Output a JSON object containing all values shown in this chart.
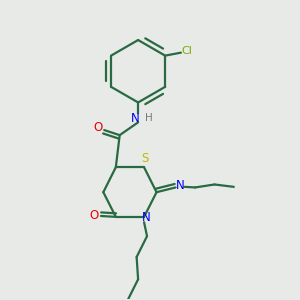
{
  "bg_color": "#e8eae8",
  "bond_color": "#2a6a42",
  "atom_colors": {
    "N": "#0000ee",
    "O": "#ee0000",
    "S": "#bbbb00",
    "Cl": "#77aa00",
    "H": "#777777",
    "C": "#2a6a42"
  }
}
